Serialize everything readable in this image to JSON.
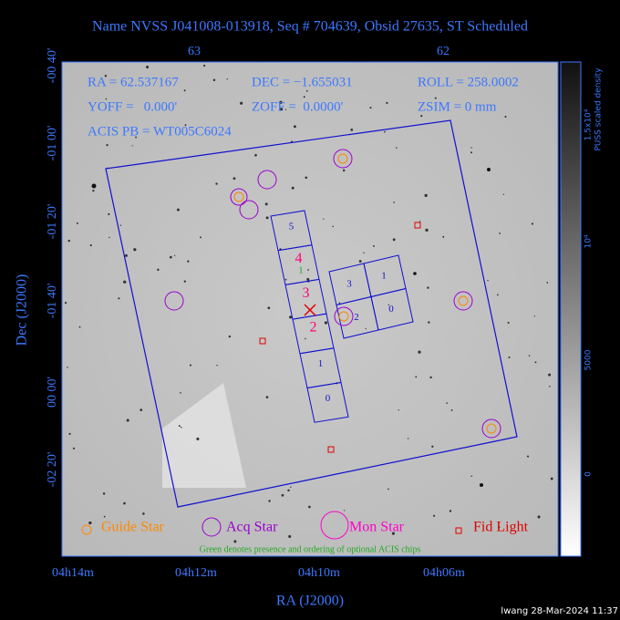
{
  "header": {
    "title": "Name NVSS J041008-013918, Seq # 704639, Obsid 27635, ST Scheduled"
  },
  "axes": {
    "top_ticks": [
      "63",
      "62"
    ],
    "left_ticks": [
      "-00 40'",
      "-01 00'",
      "-01 20'",
      "-01 40'",
      "00 00'",
      "-02 20'"
    ],
    "left_title": "Dec (J2000)",
    "bottom_ticks": [
      "04h14m",
      "04h12m",
      "04h10m",
      "04h06m"
    ],
    "bottom_title": "RA (J2000)"
  },
  "colorbar": {
    "title": "PUSS scaled density",
    "ticks": [
      "1.5x10⁴",
      "10⁴",
      "5000",
      "0"
    ]
  },
  "info": [
    "RA = 62.537167",
    "DEC = −1.655031",
    "ROLL = 258.0002",
    "YOFF =   0.000'",
    "ZOFF =  0.0000'",
    "ZSIM = 0 mm",
    "ACIS PB = WT005C6024"
  ],
  "chips": {
    "s_array": [
      "5",
      "4",
      "3",
      "2",
      "1",
      "0"
    ],
    "i_array": [
      "3",
      "1",
      "2",
      "0"
    ],
    "optional": [
      "1"
    ]
  },
  "legend": [
    "Guide Star",
    "Acq Star",
    "Mon Star",
    "Fid Light"
  ],
  "note": "Green denotes presence and ordering of optional ACIS chips",
  "footer": "lwang 28-Mar-2024 11:37"
}
